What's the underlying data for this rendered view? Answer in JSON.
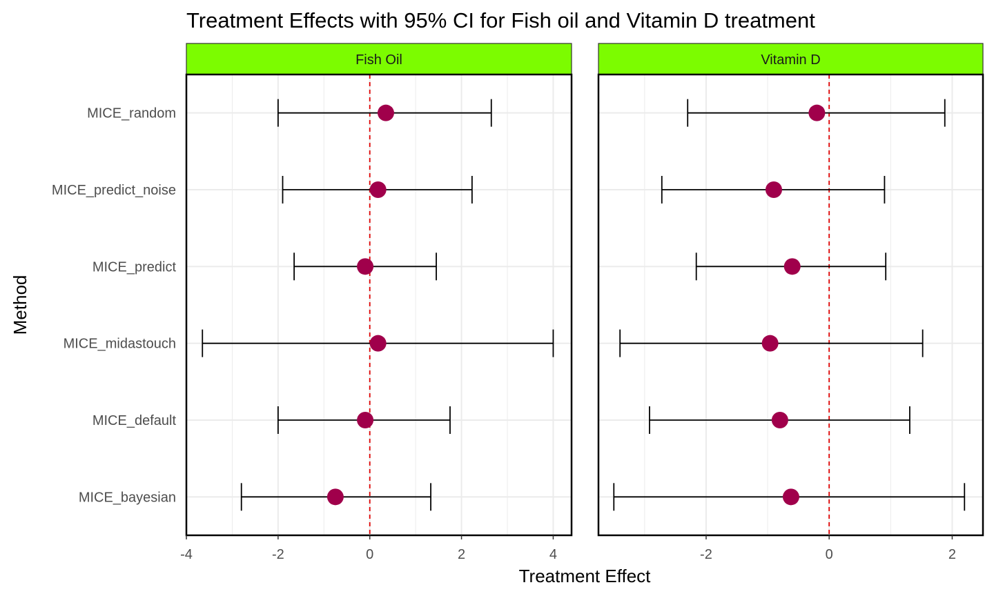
{
  "chart_data": {
    "type": "scatter",
    "title": "Treatment Effects with 95% CI for Fish oil and Vitamin D treatment",
    "xlabel": "Treatment Effect",
    "ylabel": "Method",
    "categories": [
      "MICE_random",
      "MICE_predict_noise",
      "MICE_predict",
      "MICE_midastouch",
      "MICE_default",
      "MICE_bayesian"
    ],
    "reference_line": 0,
    "grid": true,
    "colors": {
      "point": "#A0004B",
      "strip": "#7CFC00",
      "reference_line": "#E00000",
      "errorbar": "#000000",
      "grid": "#EBEBEB"
    },
    "panels": [
      {
        "name": "Fish Oil",
        "xlim": [
          -4,
          4.4
        ],
        "xticks": [
          -4,
          -2,
          0,
          2,
          4
        ],
        "xtick_labels": [
          "-4",
          "-2",
          "0",
          "2",
          "4"
        ],
        "points": [
          {
            "method": "MICE_random",
            "estimate": 0.35,
            "lower": -2.0,
            "upper": 2.65
          },
          {
            "method": "MICE_predict_noise",
            "estimate": 0.18,
            "lower": -1.9,
            "upper": 2.23
          },
          {
            "method": "MICE_predict",
            "estimate": -0.1,
            "lower": -1.65,
            "upper": 1.45
          },
          {
            "method": "MICE_midastouch",
            "estimate": 0.18,
            "lower": -3.65,
            "upper": 4.0
          },
          {
            "method": "MICE_default",
            "estimate": -0.1,
            "lower": -2.0,
            "upper": 1.75
          },
          {
            "method": "MICE_bayesian",
            "estimate": -0.75,
            "lower": -2.8,
            "upper": 1.33
          }
        ]
      },
      {
        "name": "Vitamin D",
        "xlim": [
          -3.75,
          2.5
        ],
        "xticks": [
          -2,
          0,
          2
        ],
        "xtick_labels": [
          "-2",
          "0",
          "2"
        ],
        "points": [
          {
            "method": "MICE_random",
            "estimate": -0.2,
            "lower": -2.3,
            "upper": 1.88
          },
          {
            "method": "MICE_predict_noise",
            "estimate": -0.9,
            "lower": -2.72,
            "upper": 0.9
          },
          {
            "method": "MICE_predict",
            "estimate": -0.6,
            "lower": -2.16,
            "upper": 0.92
          },
          {
            "method": "MICE_midastouch",
            "estimate": -0.96,
            "lower": -3.4,
            "upper": 1.52
          },
          {
            "method": "MICE_default",
            "estimate": -0.8,
            "lower": -2.92,
            "upper": 1.31
          },
          {
            "method": "MICE_bayesian",
            "estimate": -0.62,
            "lower": -3.5,
            "upper": 2.2
          }
        ]
      }
    ]
  }
}
